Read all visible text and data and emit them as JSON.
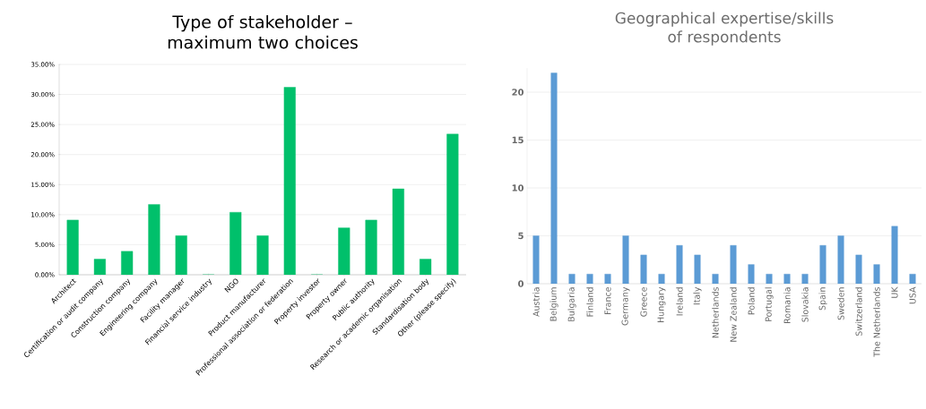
{
  "chart_data": [
    {
      "type": "bar",
      "title": "Type of stakeholder – maximum two choices",
      "categories": [
        "Architect",
        "Certification or audit company",
        "Construction company",
        "Engineering company",
        "Facility manager",
        "Financial service industry",
        "NGO",
        "Product manufacturer",
        "Professional association or federation",
        "Property investor",
        "Property owner",
        "Public authority",
        "Research or academic organisation",
        "Standardisation body",
        "Other (please specify)"
      ],
      "values": [
        9.1,
        2.6,
        3.9,
        11.7,
        6.5,
        0,
        10.4,
        6.5,
        31.2,
        0,
        7.8,
        9.1,
        14.3,
        2.6,
        23.4
      ],
      "color": "#00c06b",
      "ylim": [
        0,
        35
      ],
      "yticks": [
        {
          "value": 0,
          "label": "0.00%"
        },
        {
          "value": 5,
          "label": "5.00%"
        },
        {
          "value": 10,
          "label": "10.00%"
        },
        {
          "value": 15,
          "label": "15.00%"
        },
        {
          "value": 20,
          "label": "20.00%"
        },
        {
          "value": 25,
          "label": "25.00%"
        },
        {
          "value": 30,
          "label": "30.00%"
        },
        {
          "value": 35,
          "label": "35.00%"
        }
      ],
      "grid": "y"
    },
    {
      "type": "bar",
      "title": "Geographical expertise/skills of respondents",
      "categories": [
        "Austria",
        "Belgium",
        "Bulgaria",
        "Finland",
        "France",
        "Germany",
        "Greece",
        "Hungary",
        "Ireland",
        "Italy",
        "Netherlands",
        "New Zealand",
        "Poland",
        "Portugal",
        "Romania",
        "Slovakia",
        "Spain",
        "Sweden",
        "Switzerland",
        "The Netherlands",
        "UK",
        "USA"
      ],
      "values": [
        5,
        22,
        1,
        1,
        1,
        5,
        3,
        1,
        4,
        3,
        1,
        4,
        2,
        1,
        1,
        1,
        4,
        5,
        3,
        2,
        6,
        1
      ],
      "color": "#5b9bd5",
      "ylim": [
        0,
        22.5
      ],
      "yticks": [
        0,
        5,
        10,
        15,
        20
      ],
      "grid": "y"
    }
  ]
}
